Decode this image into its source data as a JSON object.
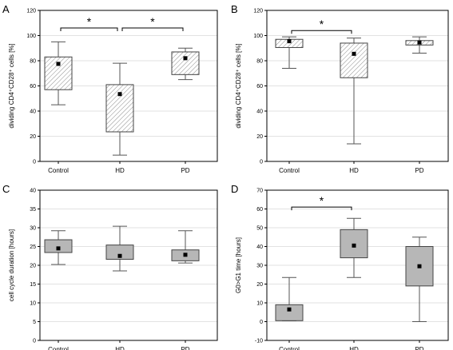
{
  "chart_data": [
    {
      "type": "box",
      "panel_label": "A",
      "ylabel": "dividing CD4⁺CD28⁺ cells [%]",
      "ylim": [
        0,
        120
      ],
      "yticks": [
        0,
        20,
        40,
        60,
        80,
        100,
        120
      ],
      "grid": true,
      "fill": "hatched",
      "categories": [
        "Control",
        "HD",
        "PD"
      ],
      "boxes": [
        {
          "category": "Control",
          "min": 45,
          "q1": 57,
          "mean": 77.5,
          "q3": 83,
          "max": 95
        },
        {
          "category": "HD",
          "min": 5,
          "q1": 23.5,
          "mean": 53.5,
          "q3": 61,
          "max": 78
        },
        {
          "category": "PD",
          "min": 65,
          "q1": 69,
          "mean": 82,
          "q3": 87,
          "max": 90
        }
      ],
      "significance": [
        {
          "from": "Control",
          "to": "HD",
          "label": "*",
          "y": 106
        },
        {
          "from": "HD",
          "to": "PD",
          "label": "*",
          "y": 106
        }
      ]
    },
    {
      "type": "box",
      "panel_label": "B",
      "ylabel": "dividing CD4⁺CD28⁺ cells [%]",
      "ylim": [
        0,
        120
      ],
      "yticks": [
        0,
        20,
        40,
        60,
        80,
        100,
        120
      ],
      "grid": true,
      "fill": "hatched",
      "categories": [
        "Control",
        "HD",
        "PD"
      ],
      "boxes": [
        {
          "category": "Control",
          "min": 74,
          "q1": 90.5,
          "mean": 95.5,
          "q3": 97,
          "max": 99
        },
        {
          "category": "HD",
          "min": 14,
          "q1": 66.5,
          "mean": 85.5,
          "q3": 94,
          "max": 98
        },
        {
          "category": "PD",
          "min": 86,
          "q1": 92.5,
          "mean": 94.5,
          "q3": 96,
          "max": 99
        }
      ],
      "significance": [
        {
          "from": "Control",
          "to": "HD",
          "label": "*",
          "y": 104
        }
      ]
    },
    {
      "type": "box",
      "panel_label": "C",
      "ylabel": "cell cycle duration [hours]",
      "ylim": [
        0,
        40
      ],
      "yticks": [
        0,
        5,
        10,
        15,
        20,
        25,
        30,
        35,
        40
      ],
      "grid": true,
      "fill": "gray",
      "categories": [
        "Control",
        "HD",
        "PD"
      ],
      "boxes": [
        {
          "category": "Control",
          "min": 20.2,
          "q1": 23.4,
          "mean": 24.5,
          "q3": 26.8,
          "max": 29.2
        },
        {
          "category": "HD",
          "min": 18.5,
          "q1": 21.6,
          "mean": 22.5,
          "q3": 25.4,
          "max": 30.4
        },
        {
          "category": "PD",
          "min": 20.6,
          "q1": 21.2,
          "mean": 22.8,
          "q3": 24.1,
          "max": 29.2
        }
      ],
      "significance": []
    },
    {
      "type": "box",
      "panel_label": "D",
      "ylabel": "G0>G1 time [hours]",
      "ylim": [
        -10,
        70
      ],
      "yticks": [
        -10,
        0,
        10,
        20,
        30,
        40,
        50,
        60,
        70
      ],
      "grid": true,
      "fill": "gray",
      "categories": [
        "Control",
        "HD",
        "PD"
      ],
      "boxes": [
        {
          "category": "Control",
          "min": 0.5,
          "q1": 0.5,
          "mean": 6.5,
          "q3": 9,
          "max": 23.5
        },
        {
          "category": "HD",
          "min": 23.5,
          "q1": 34,
          "mean": 40.5,
          "q3": 49,
          "max": 55
        },
        {
          "category": "PD",
          "min": 0,
          "q1": 19,
          "mean": 29.5,
          "q3": 40,
          "max": 45
        }
      ],
      "significance": [
        {
          "from": "Control",
          "to": "HD",
          "label": "*",
          "y": 61
        }
      ]
    }
  ],
  "colors": {
    "box_gray": "#b7b7b7",
    "hatch_line": "#8c8c8c",
    "grid": "#e2e2e2",
    "axis": "#000000"
  }
}
